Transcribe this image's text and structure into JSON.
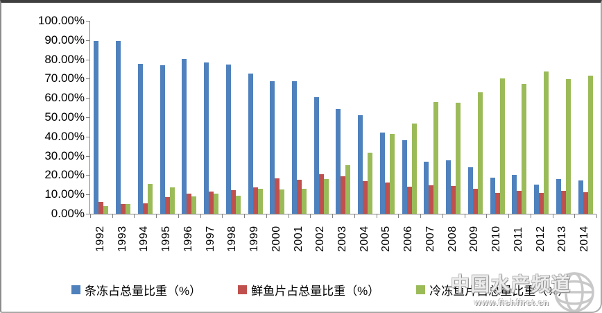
{
  "chart_data": {
    "type": "bar",
    "categories": [
      "1992",
      "1993",
      "1994",
      "1995",
      "1996",
      "1997",
      "1998",
      "1999",
      "2000",
      "2001",
      "2002",
      "2003",
      "2004",
      "2005",
      "2006",
      "2007",
      "2008",
      "2009",
      "2010",
      "2011",
      "2012",
      "2013",
      "2014"
    ],
    "series": [
      {
        "name": "条冻占总量比重（%）",
        "color": "#4F81BD",
        "values": [
          89.5,
          89.5,
          77.6,
          77.0,
          80.2,
          78.4,
          77.2,
          72.7,
          68.8,
          68.8,
          60.5,
          54.4,
          51.0,
          42.0,
          38.3,
          27.0,
          27.6,
          24.0,
          18.7,
          20.0,
          15.0,
          18.0,
          17.2
        ]
      },
      {
        "name": "鲜鱼片占总量比重（%）",
        "color": "#C0504D",
        "values": [
          6.0,
          5.0,
          5.5,
          8.8,
          10.6,
          11.4,
          12.4,
          13.8,
          18.2,
          17.8,
          20.6,
          19.6,
          16.8,
          16.3,
          14.2,
          14.6,
          14.4,
          12.8,
          10.8,
          12.0,
          10.9,
          11.8,
          11.0
        ]
      },
      {
        "name": "冷冻鱼片占总量比重（%）",
        "color": "#9BBB59",
        "values": [
          3.8,
          5.0,
          15.6,
          13.5,
          8.9,
          10.4,
          9.5,
          12.8,
          12.5,
          12.8,
          17.9,
          25.3,
          31.8,
          41.2,
          46.9,
          58.0,
          57.6,
          63.0,
          70.1,
          67.2,
          73.7,
          69.8,
          71.5
        ]
      }
    ],
    "title": "",
    "xlabel": "",
    "ylabel": "",
    "ylim": [
      0,
      100
    ],
    "ytick_step": 10,
    "y_tick_labels": [
      "100.00%",
      "90.00%",
      "80.00%",
      "70.00%",
      "60.00%",
      "50.00%",
      "40.00%",
      "30.00%",
      "20.00%",
      "10.00%",
      "0.00%"
    ],
    "grid": false,
    "legend_position": "bottom"
  },
  "watermark": {
    "title": "中国水产频道",
    "url": "www.fishfirst.cn"
  }
}
